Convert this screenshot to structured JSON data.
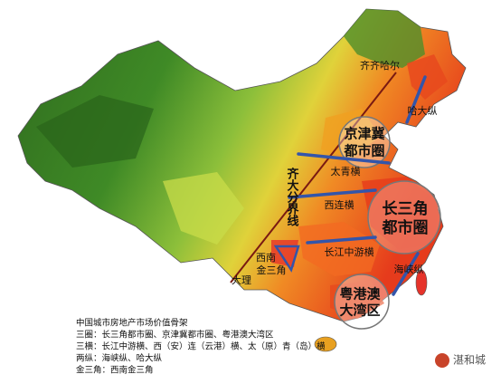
{
  "map": {
    "labels": [
      {
        "lines": [
          "齐齐哈尔"
        ]
      },
      {
        "lines": [
          "哈大纵"
        ]
      },
      {
        "lines": [
          "京津冀",
          "都市圈"
        ]
      },
      {
        "lines": [
          "太青横"
        ]
      },
      {
        "lines": [
          "齐大分界线"
        ]
      },
      {
        "lines": [
          "西连横"
        ]
      },
      {
        "lines": [
          "长三角",
          "都市圈"
        ]
      },
      {
        "lines": [
          "长江中游横"
        ]
      },
      {
        "lines": [
          "西南",
          "金三角"
        ]
      },
      {
        "lines": [
          "大理"
        ]
      },
      {
        "lines": [
          "海峡纵"
        ]
      },
      {
        "lines": [
          "粤港澳",
          "大湾区"
        ]
      }
    ],
    "legend": {
      "title": "中国城市房地产市场价值骨架",
      "lines": [
        "三圈：长三角都市圈、京津冀都市圈、粤港澳大湾区",
        "三横：长江中游横、西（安）连（云港）横、太（原）青（岛）横",
        "两纵：海峡纵、哈大纵",
        "金三角：西南金三角"
      ]
    },
    "watermark": "湛和城"
  }
}
